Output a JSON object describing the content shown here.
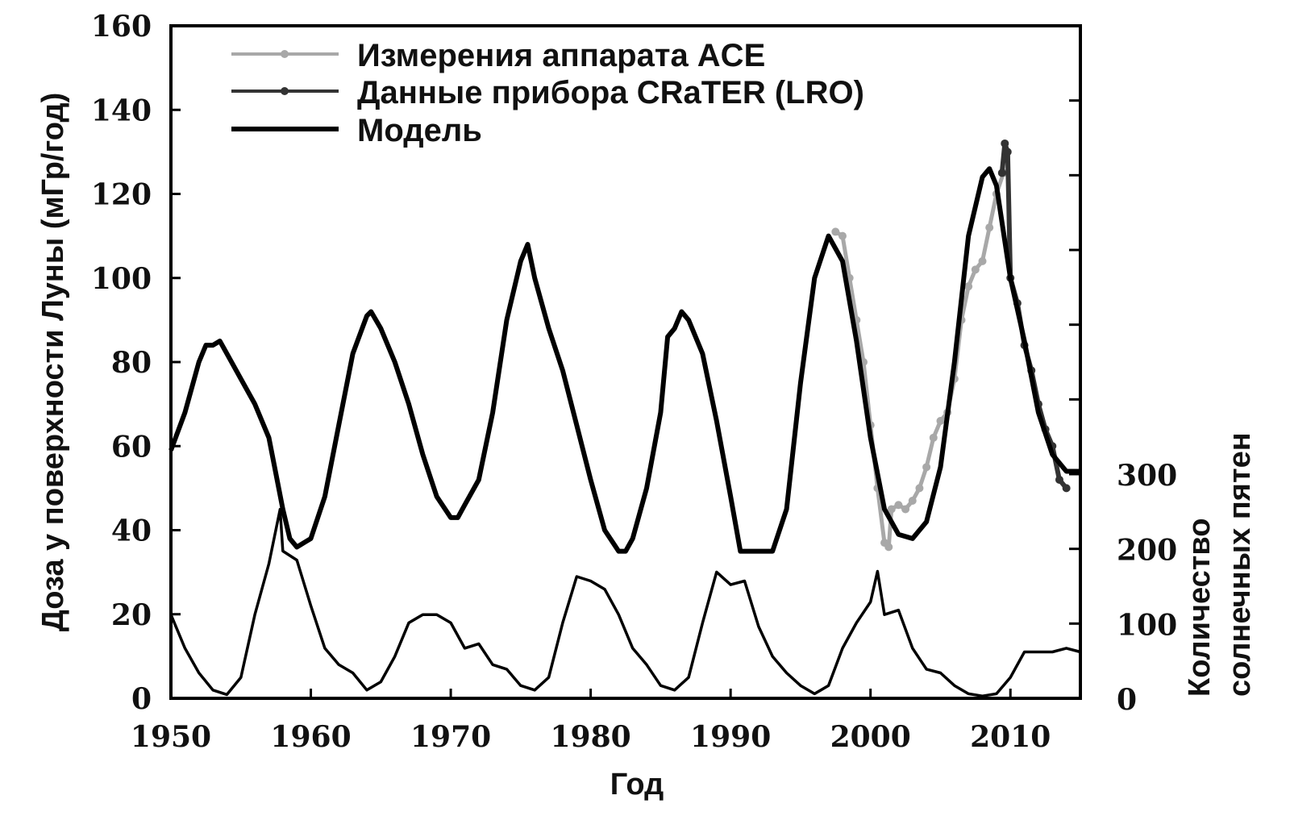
{
  "chart_data": {
    "type": "line",
    "xlabel": "Год",
    "ylabel": "Доза у поверхности Луны (мГр/год)",
    "y2label": [
      "Количество",
      "солнечных пятен"
    ],
    "xlim": [
      1950,
      2015
    ],
    "ylim": [
      0,
      160
    ],
    "y2lim": [
      0,
      900
    ],
    "xticks": [
      1950,
      1960,
      1970,
      1980,
      1990,
      2000,
      2010
    ],
    "yticks": [
      0,
      20,
      40,
      60,
      80,
      100,
      120,
      140,
      160
    ],
    "y2ticks": [
      0,
      100,
      200,
      300,
      400,
      500,
      600,
      700,
      800
    ],
    "y2ticklabels": [
      "0",
      "100",
      "200",
      "300"
    ],
    "grid": false,
    "legend": "top-left",
    "series": [
      {
        "name": "Измерения аппарата ACE",
        "axis": "left",
        "color": "#a8a8a8",
        "markers": true,
        "x": [
          1997.5,
          1998,
          1998.5,
          1999,
          1999.5,
          2000,
          2000.5,
          2001,
          2001.3,
          2001.5,
          2002,
          2002.5,
          2003,
          2003.5,
          2004,
          2004.5,
          2005,
          2005.5,
          2006,
          2006.5,
          2007,
          2007.5,
          2008,
          2008.5,
          2009,
          2009.5
        ],
        "y": [
          111,
          110,
          100,
          90,
          80,
          65,
          50,
          37,
          36,
          45,
          46,
          45,
          47,
          50,
          55,
          62,
          66,
          68,
          76,
          90,
          98,
          102,
          104,
          112,
          120,
          125
        ]
      },
      {
        "name": "Данные прибора CRaTER (LRO)",
        "axis": "left",
        "color": "#333333",
        "markers": true,
        "x": [
          2009.4,
          2009.6,
          2009.8,
          2010,
          2010.5,
          2011,
          2011.5,
          2012,
          2012.5,
          2013,
          2013.5,
          2014
        ],
        "y": [
          125,
          132,
          130,
          100,
          94,
          84,
          78,
          70,
          64,
          60,
          52,
          50
        ]
      },
      {
        "name": "Модель",
        "axis": "left",
        "color": "#000000",
        "markers": false,
        "x": [
          1950,
          1951,
          1952,
          1952.5,
          1953,
          1953.5,
          1954,
          1955,
          1956,
          1957,
          1958,
          1958.5,
          1959,
          1960,
          1961,
          1962,
          1963,
          1964,
          1964.3,
          1965,
          1966,
          1967,
          1968,
          1969,
          1970,
          1970.5,
          1971,
          1972,
          1973,
          1974,
          1975,
          1975.5,
          1976,
          1977,
          1978,
          1979,
          1980,
          1981,
          1982,
          1982.5,
          1983,
          1984,
          1985,
          1985.5,
          1986,
          1986.5,
          1987,
          1988,
          1989,
          1990,
          1990.7,
          1991,
          1993,
          1994,
          1995,
          1996,
          1997,
          1998,
          1999,
          2000,
          2001,
          2002,
          2003,
          2004,
          2005,
          2006,
          2007,
          2008,
          2008.5,
          2009,
          2010,
          2011,
          2012,
          2013,
          2014,
          2015
        ],
        "y": [
          59,
          68,
          80,
          84,
          84,
          85,
          82,
          76,
          70,
          62,
          45,
          38,
          36,
          38,
          48,
          65,
          82,
          91,
          92,
          88,
          80,
          70,
          58,
          48,
          43,
          43,
          46,
          52,
          68,
          90,
          104,
          108,
          100,
          88,
          78,
          65,
          52,
          40,
          35,
          35,
          38,
          50,
          68,
          86,
          88,
          92,
          90,
          82,
          66,
          48,
          35,
          35,
          35,
          45,
          75,
          100,
          110,
          104,
          85,
          62,
          45,
          39,
          38,
          42,
          55,
          80,
          110,
          124,
          126,
          122,
          100,
          85,
          68,
          58,
          54,
          54
        ]
      },
      {
        "axis": "right",
        "color": "#000000",
        "markers": false,
        "x": [
          1950,
          1951,
          1952,
          1953,
          1954,
          1955,
          1956,
          1957,
          1957.8,
          1958,
          1959,
          1960,
          1961,
          1962,
          1963,
          1964,
          1965,
          1966,
          1967,
          1968,
          1969,
          1970,
          1971,
          1972,
          1973,
          1974,
          1975,
          1976,
          1977,
          1978,
          1979,
          1980,
          1981,
          1982,
          1983,
          1984,
          1985,
          1986,
          1987,
          1988,
          1989,
          1990,
          1991,
          1992,
          1993,
          1994,
          1995,
          1996,
          1997,
          1998,
          1999,
          2000,
          2000.5,
          2001,
          2002,
          2003,
          2004,
          2005,
          2006,
          2007,
          2008,
          2009,
          2010,
          2011,
          2012,
          2013,
          2014,
          2015
        ],
        "y": [
          112,
          67,
          34,
          11,
          5,
          28,
          112,
          180,
          253,
          197,
          185,
          124,
          67,
          45,
          34,
          11,
          22,
          56,
          101,
          112,
          112,
          101,
          67,
          73,
          45,
          39,
          17,
          11,
          28,
          101,
          163,
          157,
          146,
          112,
          67,
          45,
          17,
          11,
          28,
          101,
          169,
          152,
          157,
          96,
          56,
          34,
          17,
          6,
          17,
          67,
          101,
          129,
          170,
          112,
          118,
          67,
          39,
          34,
          17,
          6,
          3,
          6,
          28,
          62,
          62,
          62,
          67,
          62
        ]
      }
    ]
  }
}
